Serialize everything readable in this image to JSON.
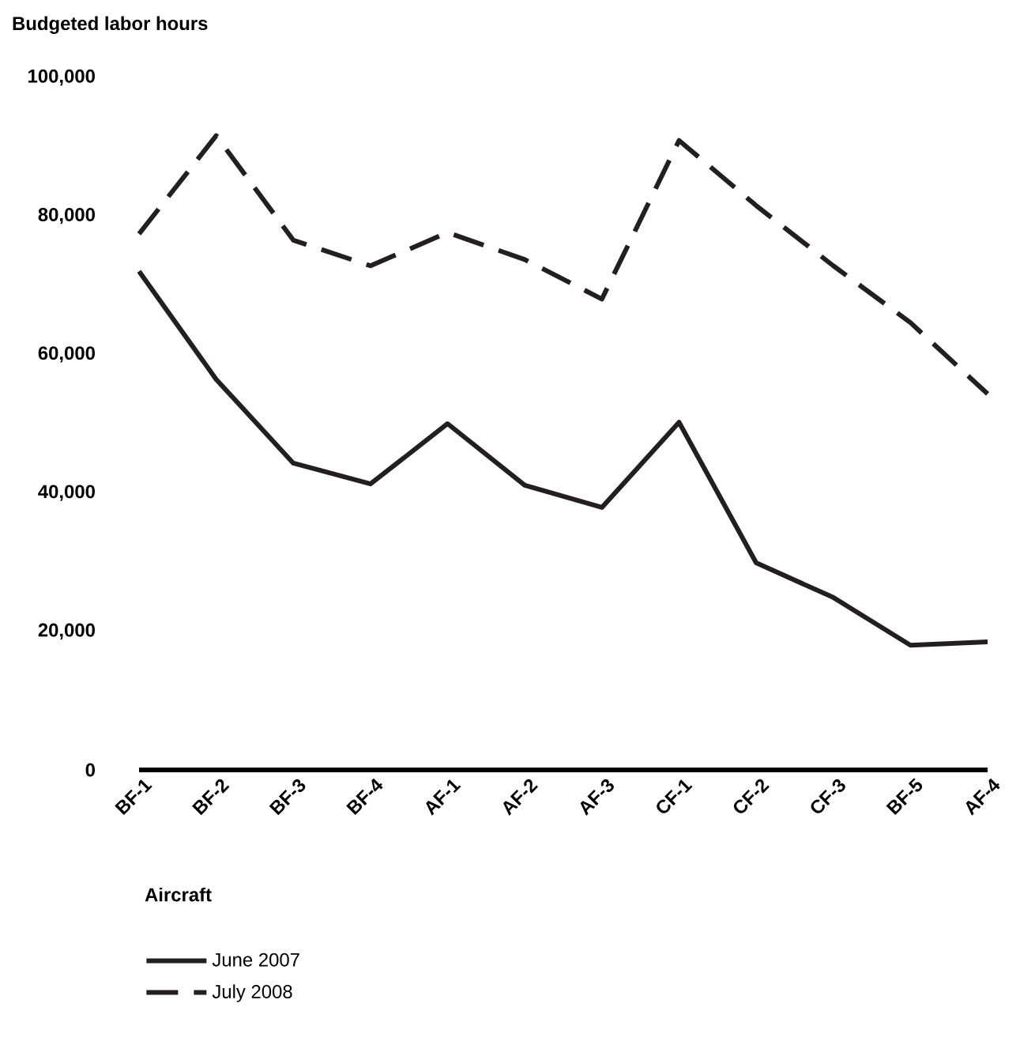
{
  "chart_data": {
    "type": "line",
    "ylabel": "Budgeted labor hours",
    "xlabel": "Aircraft",
    "categories": [
      "BF-1",
      "BF-2",
      "BF-3",
      "BF-4",
      "AF-1",
      "AF-2",
      "AF-3",
      "CF-1",
      "CF-2",
      "CF-3",
      "BF-5",
      "AF-4"
    ],
    "series": [
      {
        "name": "June 2007",
        "color": "#231f20",
        "line_style": "solid",
        "values": [
          72000,
          56400,
          44300,
          41300,
          50000,
          41100,
          37900,
          50200,
          29900,
          24900,
          18000,
          18500
        ]
      },
      {
        "name": "July 2008",
        "color": "#231f20",
        "line_style": "dashed",
        "values": [
          77400,
          91600,
          76500,
          72800,
          77600,
          73700,
          68000,
          90900,
          81500,
          72800,
          64600,
          54300
        ]
      }
    ],
    "ylim": [
      0,
      100000
    ],
    "yticks": [
      {
        "value": 0,
        "label": "0"
      },
      {
        "value": 20000,
        "label": "20,000"
      },
      {
        "value": 40000,
        "label": "40,000"
      },
      {
        "value": 60000,
        "label": "60,000"
      },
      {
        "value": 80000,
        "label": "80,000"
      },
      {
        "value": 100000,
        "label": "100,000"
      }
    ],
    "grid": false,
    "legend": "bottom",
    "marker": "none"
  }
}
